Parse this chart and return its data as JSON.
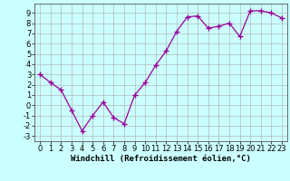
{
  "x": [
    0,
    1,
    2,
    3,
    4,
    5,
    6,
    7,
    8,
    9,
    10,
    11,
    12,
    13,
    14,
    15,
    16,
    17,
    18,
    19,
    20,
    21,
    22,
    23
  ],
  "y": [
    3.0,
    2.2,
    1.5,
    -0.5,
    -2.5,
    -1.0,
    0.3,
    -1.2,
    -1.8,
    1.0,
    2.2,
    3.9,
    5.3,
    7.2,
    8.6,
    8.7,
    7.5,
    7.7,
    8.0,
    6.7,
    9.2,
    9.2,
    9.0,
    8.5
  ],
  "line_color": "#990099",
  "marker": "+",
  "marker_size": 4,
  "marker_linewidth": 1.0,
  "bg_color": "#ccffff",
  "grid_color": "#aaaaaa",
  "xlabel": "Windchill (Refroidissement éolien,°C)",
  "xlim": [
    -0.5,
    23.5
  ],
  "ylim": [
    -3.5,
    9.9
  ],
  "yticks": [
    -3,
    -2,
    -1,
    0,
    1,
    2,
    3,
    4,
    5,
    6,
    7,
    8,
    9
  ],
  "xticks": [
    0,
    1,
    2,
    3,
    4,
    5,
    6,
    7,
    8,
    9,
    10,
    11,
    12,
    13,
    14,
    15,
    16,
    17,
    18,
    19,
    20,
    21,
    22,
    23
  ],
  "xlabel_fontsize": 6.5,
  "tick_fontsize": 6.0,
  "linewidth": 0.9
}
